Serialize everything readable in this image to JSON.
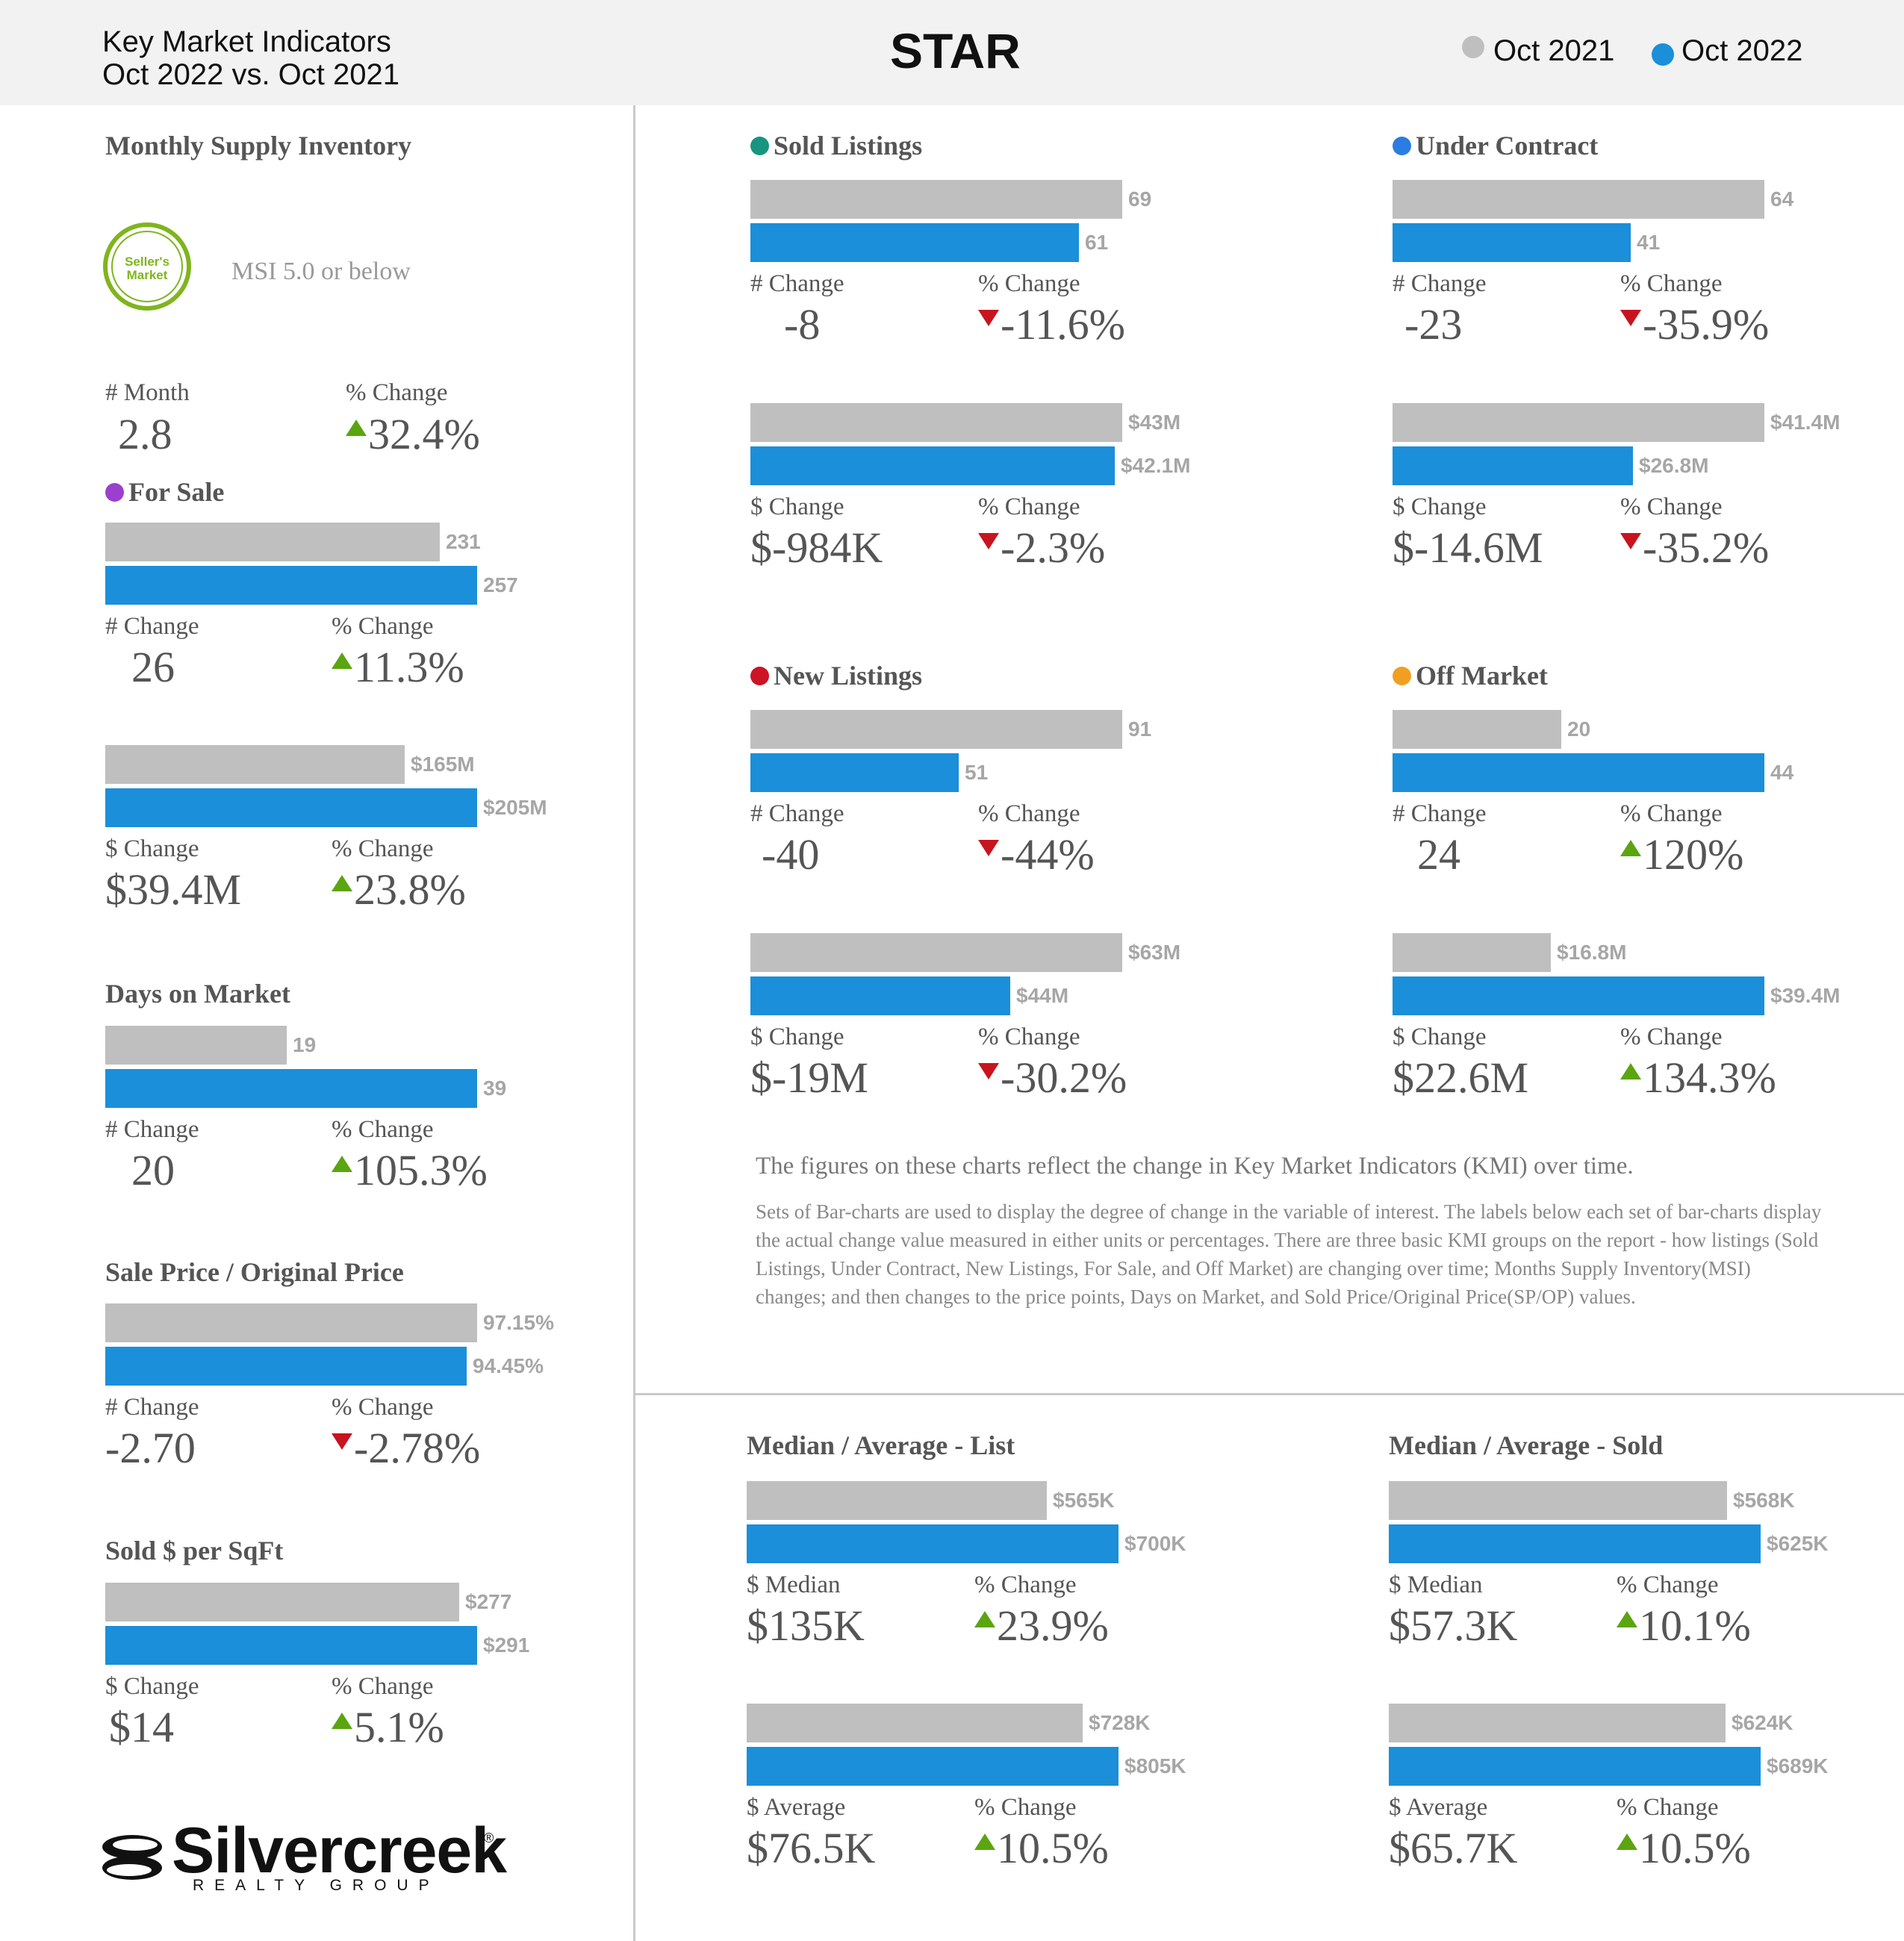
{
  "header": {
    "title_line1": "Key Market Indicators",
    "title_line2": "Oct 2022 vs. Oct 2021",
    "brand": "STAR",
    "legend": [
      {
        "label": "Oct 2021",
        "color": "#bfbfbf"
      },
      {
        "label": "Oct 2022",
        "color": "#1b8fd9"
      }
    ]
  },
  "colors": {
    "prev": "#bfbfbf",
    "curr": "#1b8fd9",
    "up": "#5aa510",
    "down": "#c8141e"
  },
  "msi": {
    "title": "Monthly Supply Inventory",
    "badge_text": "Seller's Market",
    "note": "MSI 5.0 or below",
    "cap1": "# Month",
    "val1": "2.8",
    "cap2": "% Change",
    "val2": "32.4%",
    "dir2": "up"
  },
  "chart_data": [
    {
      "type": "bar",
      "title": "For Sale",
      "dot_color": "#9b3fcf",
      "rows": [
        {
          "series": [
            "Oct 2021",
            "Oct 2022"
          ],
          "values": [
            231,
            257
          ],
          "labels": [
            "231",
            "257"
          ],
          "cap1": "# Change",
          "val1": "26",
          "cap2": "% Change",
          "val2": "11.3%",
          "dir": "up"
        },
        {
          "series": [
            "Oct 2021",
            "Oct 2022"
          ],
          "values": [
            165,
            205
          ],
          "labels": [
            "$165M",
            "$205M"
          ],
          "cap1": "$ Change",
          "val1": "$39.4M",
          "cap2": "% Change",
          "val2": "23.8%",
          "dir": "up"
        }
      ]
    },
    {
      "type": "bar",
      "title": "Days on Market",
      "rows": [
        {
          "series": [
            "Oct 2021",
            "Oct 2022"
          ],
          "values": [
            19,
            39
          ],
          "labels": [
            "19",
            "39"
          ],
          "cap1": "# Change",
          "val1": "20",
          "cap2": "% Change",
          "val2": "105.3%",
          "dir": "up"
        }
      ]
    },
    {
      "type": "bar",
      "title": "Sale Price / Original Price",
      "rows": [
        {
          "series": [
            "Oct 2021",
            "Oct 2022"
          ],
          "values": [
            97.15,
            94.45
          ],
          "labels": [
            "97.15%",
            "94.45%"
          ],
          "cap1": "# Change",
          "val1": "-2.70",
          "cap2": "% Change",
          "val2": "-2.78%",
          "dir": "down"
        }
      ]
    },
    {
      "type": "bar",
      "title": "Sold $ per SqFt",
      "rows": [
        {
          "series": [
            "Oct 2021",
            "Oct 2022"
          ],
          "values": [
            277,
            291
          ],
          "labels": [
            "$277",
            "$291"
          ],
          "cap1": "$ Change",
          "val1": "$14",
          "cap2": "% Change",
          "val2": "5.1%",
          "dir": "up"
        }
      ]
    },
    {
      "type": "bar",
      "title": "Sold Listings",
      "dot_color": "#16957f",
      "rows": [
        {
          "series": [
            "Oct 2021",
            "Oct 2022"
          ],
          "values": [
            69,
            61
          ],
          "labels": [
            "69",
            "61"
          ],
          "cap1": "# Change",
          "val1": "-8",
          "cap2": "% Change",
          "val2": "-11.6%",
          "dir": "down"
        },
        {
          "series": [
            "Oct 2021",
            "Oct 2022"
          ],
          "values": [
            43,
            42.1
          ],
          "labels": [
            "$43M",
            "$42.1M"
          ],
          "cap1": "$ Change",
          "val1": "$-984K",
          "cap2": "% Change",
          "val2": "-2.3%",
          "dir": "down"
        }
      ]
    },
    {
      "type": "bar",
      "title": "Under Contract",
      "dot_color": "#2a7de1",
      "rows": [
        {
          "series": [
            "Oct 2021",
            "Oct 2022"
          ],
          "values": [
            64,
            41
          ],
          "labels": [
            "64",
            "41"
          ],
          "cap1": "# Change",
          "val1": "-23",
          "cap2": "% Change",
          "val2": "-35.9%",
          "dir": "down"
        },
        {
          "series": [
            "Oct 2021",
            "Oct 2022"
          ],
          "values": [
            41.4,
            26.8
          ],
          "labels": [
            "$41.4M",
            "$26.8M"
          ],
          "cap1": "$ Change",
          "val1": "$-14.6M",
          "cap2": "% Change",
          "val2": "-35.2%",
          "dir": "down"
        }
      ]
    },
    {
      "type": "bar",
      "title": "New Listings",
      "dot_color": "#cc1424",
      "rows": [
        {
          "series": [
            "Oct 2021",
            "Oct 2022"
          ],
          "values": [
            91,
            51
          ],
          "labels": [
            "91",
            "51"
          ],
          "cap1": "# Change",
          "val1": "-40",
          "cap2": "% Change",
          "val2": "-44%",
          "dir": "down"
        },
        {
          "series": [
            "Oct 2021",
            "Oct 2022"
          ],
          "values": [
            63,
            44
          ],
          "labels": [
            "$63M",
            "$44M"
          ],
          "cap1": "$ Change",
          "val1": "$-19M",
          "cap2": "% Change",
          "val2": "-30.2%",
          "dir": "down"
        }
      ]
    },
    {
      "type": "bar",
      "title": "Off Market",
      "dot_color": "#f0a020",
      "rows": [
        {
          "series": [
            "Oct 2021",
            "Oct 2022"
          ],
          "values": [
            20,
            44
          ],
          "labels": [
            "20",
            "44"
          ],
          "cap1": "# Change",
          "val1": "24",
          "cap2": "% Change",
          "val2": "120%",
          "dir": "up"
        },
        {
          "series": [
            "Oct 2021",
            "Oct 2022"
          ],
          "values": [
            16.8,
            39.4
          ],
          "labels": [
            "$16.8M",
            "$39.4M"
          ],
          "cap1": "$ Change",
          "val1": "$22.6M",
          "cap2": "% Change",
          "val2": "134.3%",
          "dir": "up"
        }
      ]
    },
    {
      "type": "bar",
      "title": "Median / Average - List",
      "rows": [
        {
          "series": [
            "Oct 2021",
            "Oct 2022"
          ],
          "values": [
            565,
            700
          ],
          "labels": [
            "$565K",
            "$700K"
          ],
          "cap1": "$ Median",
          "val1": "$135K",
          "cap2": "% Change",
          "val2": "23.9%",
          "dir": "up"
        },
        {
          "series": [
            "Oct 2021",
            "Oct 2022"
          ],
          "values": [
            728,
            805
          ],
          "labels": [
            "$728K",
            "$805K"
          ],
          "cap1": "$ Average",
          "val1": "$76.5K",
          "cap2": "% Change",
          "val2": "10.5%",
          "dir": "up"
        }
      ]
    },
    {
      "type": "bar",
      "title": "Median / Average - Sold",
      "rows": [
        {
          "series": [
            "Oct 2021",
            "Oct 2022"
          ],
          "values": [
            568,
            625
          ],
          "labels": [
            "$568K",
            "$625K"
          ],
          "cap1": "$ Median",
          "val1": "$57.3K",
          "cap2": "% Change",
          "val2": "10.1%",
          "dir": "up"
        },
        {
          "series": [
            "Oct 2021",
            "Oct 2022"
          ],
          "values": [
            624,
            689
          ],
          "labels": [
            "$624K",
            "$689K"
          ],
          "cap1": "$ Average",
          "val1": "$65.7K",
          "cap2": "% Change",
          "val2": "10.5%",
          "dir": "up"
        }
      ]
    }
  ],
  "notes": {
    "lead": "The figures on these charts reflect the change in Key Market Indicators (KMI) over time.",
    "body": "Sets of Bar-charts are used to display the degree of change in the variable of interest. The labels below each set of bar-charts display the actual change value measured in either units or percentages. There are three basic KMI groups on the report - how listings (Sold Listings, Under Contract, New Listings, For Sale, and Off Market) are changing over time; Months Supply Inventory(MSI) changes; and then changes to the price points, Days on Market, and Sold Price/Original Price(SP/OP) values."
  },
  "logo": {
    "word": "Silvercreek",
    "sub": "REALTY GROUP",
    "reg": "®"
  }
}
